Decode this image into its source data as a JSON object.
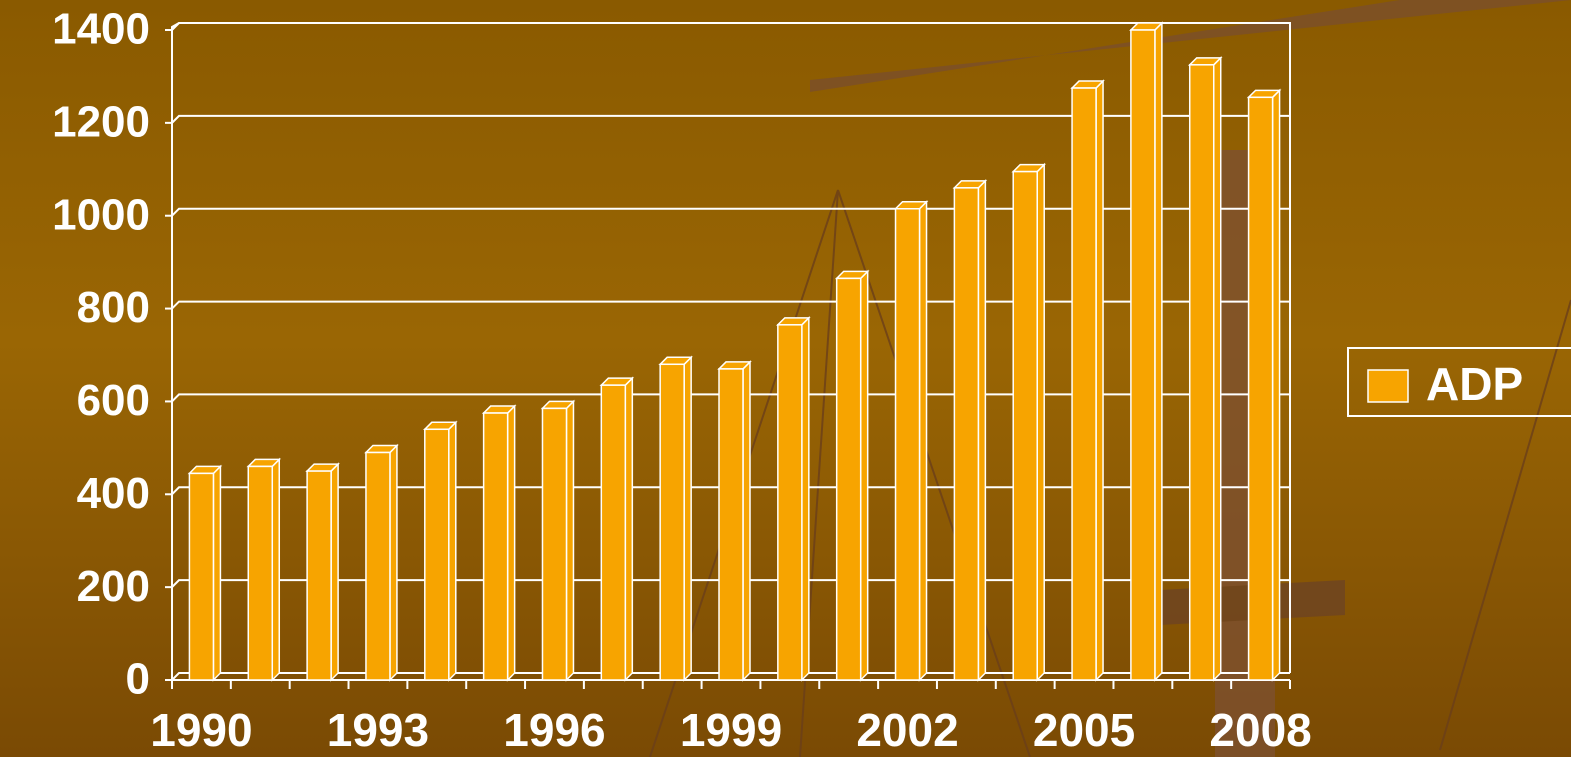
{
  "chart_data": {
    "type": "bar",
    "categories": [
      "1990",
      null,
      null,
      "1993",
      null,
      null,
      "1996",
      null,
      null,
      "1999",
      null,
      null,
      "2002",
      null,
      null,
      "2005",
      null,
      null,
      "2008"
    ],
    "series": [
      {
        "name": "ADP",
        "color": "#f7a400",
        "values": [
          445,
          460,
          450,
          490,
          540,
          575,
          585,
          635,
          680,
          670,
          765,
          865,
          1015,
          1060,
          1095,
          1275,
          1400,
          1325,
          1255
        ]
      }
    ],
    "ylim": [
      0,
      1400
    ],
    "yticks": [
      0,
      200,
      400,
      600,
      800,
      1000,
      1200,
      1400
    ],
    "grid": true,
    "legend": "right"
  }
}
